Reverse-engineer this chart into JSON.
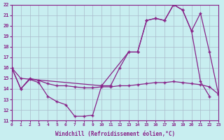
{
  "xlabel": "Windchill (Refroidissement éolien,°C)",
  "bg_color": "#c8eef0",
  "line_color": "#882288",
  "grid_color": "#aabbcc",
  "xlim": [
    0,
    23
  ],
  "ylim": [
    11,
    22
  ],
  "xticks": [
    0,
    1,
    2,
    3,
    4,
    5,
    6,
    7,
    8,
    9,
    10,
    11,
    12,
    13,
    14,
    15,
    16,
    17,
    18,
    19,
    20,
    21,
    22,
    23
  ],
  "yticks": [
    11,
    12,
    13,
    14,
    15,
    16,
    17,
    18,
    19,
    20,
    21,
    22
  ],
  "line1_x": [
    0,
    1,
    2,
    3,
    4,
    5,
    6,
    7,
    8,
    9,
    10,
    11,
    12,
    13,
    14,
    15,
    16,
    17,
    18,
    19,
    20,
    21,
    22
  ],
  "line1_y": [
    16,
    14,
    14.9,
    14.6,
    13.3,
    12.8,
    12.5,
    11.4,
    11.4,
    11.5,
    14.3,
    14.3,
    16.0,
    17.5,
    17.5,
    20.5,
    20.7,
    20.5,
    22.0,
    21.5,
    19.5,
    14.7,
    13.3
  ],
  "line2_x": [
    0,
    1,
    10,
    13,
    14,
    15,
    16,
    17,
    18,
    19,
    20,
    21,
    22,
    23
  ],
  "line2_y": [
    16,
    15,
    14.3,
    17.5,
    17.5,
    20.5,
    20.7,
    20.5,
    22.0,
    21.5,
    19.5,
    21.2,
    17.5,
    13.5
  ],
  "line3_x": [
    0,
    1,
    2,
    3,
    4,
    5,
    6,
    7,
    8,
    9,
    10,
    11,
    12,
    13,
    14,
    15,
    16,
    17,
    18,
    19,
    20,
    21,
    22,
    23
  ],
  "line3_y": [
    16,
    14,
    15.0,
    14.8,
    14.5,
    14.3,
    14.3,
    14.2,
    14.1,
    14.1,
    14.2,
    14.2,
    14.3,
    14.3,
    14.4,
    14.5,
    14.6,
    14.6,
    14.7,
    14.6,
    14.5,
    14.4,
    14.2,
    13.5
  ]
}
